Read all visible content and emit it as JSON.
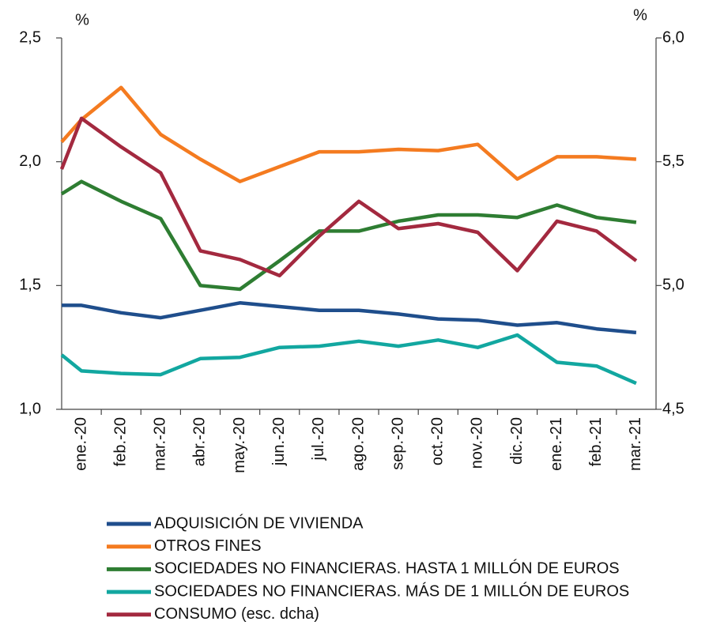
{
  "chart_data": {
    "type": "line",
    "y_unit": "%",
    "y2_unit": "%",
    "categories": [
      null,
      "ene.-20",
      "feb.-20",
      "mar.-20",
      "abr.-20",
      "may.-20",
      "jun.-20",
      "jul.-20",
      "ago.-20",
      "sep.-20",
      "oct.-20",
      "nov.-20",
      "dic.-20",
      "ene.-21",
      "feb.-21",
      "mar.-21"
    ],
    "ylim": [
      1.0,
      2.5
    ],
    "yticks": [
      {
        "value": 1.0,
        "label": "1,0"
      },
      {
        "value": 1.5,
        "label": "1,5"
      },
      {
        "value": 2.0,
        "label": "2,0"
      },
      {
        "value": 2.5,
        "label": "2,5"
      }
    ],
    "y2lim": [
      4.5,
      6.0
    ],
    "y2ticks": [
      {
        "value": 4.5,
        "label": "4,5"
      },
      {
        "value": 5.0,
        "label": "5,0"
      },
      {
        "value": 5.5,
        "label": "5,5"
      },
      {
        "value": 6.0,
        "label": "6,0"
      }
    ],
    "series": [
      {
        "name": "ADQUISICIÓN DE VIVIENDA",
        "color": "#1f4e8c",
        "values": [
          1.42,
          1.42,
          1.39,
          1.37,
          1.4,
          1.43,
          1.415,
          1.4,
          1.4,
          1.385,
          1.365,
          1.36,
          1.34,
          1.35,
          1.325,
          1.31
        ]
      },
      {
        "name": "OTROS FINES",
        "color": "#f47b20",
        "values": [
          2.08,
          2.17,
          2.3,
          2.11,
          2.01,
          1.92,
          1.98,
          2.04,
          2.04,
          2.05,
          2.045,
          2.07,
          1.93,
          2.02,
          2.02,
          2.01
        ]
      },
      {
        "name": "SOCIEDADES NO FINANCIERAS. HASTA 1 MILLÓN DE EUROS",
        "color": "#2e7d32",
        "values": [
          1.87,
          1.92,
          1.84,
          1.77,
          1.5,
          1.485,
          1.6,
          1.72,
          1.72,
          1.76,
          1.785,
          1.785,
          1.775,
          1.825,
          1.775,
          1.755
        ]
      },
      {
        "name": "SOCIEDADES NO FINANCIERAS. MÁS DE 1 MILLÓN DE EUROS",
        "color": "#12a7a0",
        "values": [
          1.22,
          1.155,
          1.145,
          1.14,
          1.205,
          1.21,
          1.25,
          1.255,
          1.275,
          1.255,
          1.28,
          1.25,
          1.3,
          1.19,
          1.175,
          1.105
        ]
      },
      {
        "name": "CONSUMO (esc. dcha)",
        "color": "#a3293f",
        "axis": "y2",
        "values": [
          5.47,
          5.675,
          5.56,
          5.455,
          5.14,
          5.105,
          5.04,
          5.2,
          5.34,
          5.23,
          5.25,
          5.215,
          5.06,
          5.26,
          5.22,
          5.1
        ]
      }
    ]
  }
}
